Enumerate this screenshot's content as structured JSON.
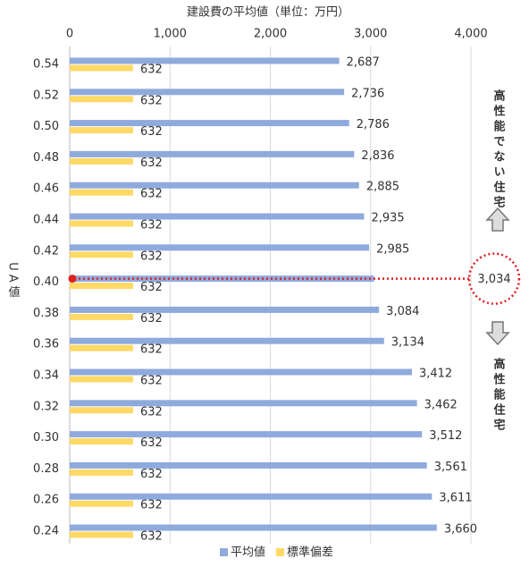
{
  "chart_data": {
    "type": "bar",
    "orientation": "horizontal",
    "title": "建設費の平均値（単位：万円）",
    "y_label": "UA値",
    "categories": [
      "0.54",
      "0.52",
      "0.50",
      "0.48",
      "0.46",
      "0.44",
      "0.42",
      "0.40",
      "0.38",
      "0.36",
      "0.34",
      "0.32",
      "0.30",
      "0.28",
      "0.26",
      "0.24"
    ],
    "series": [
      {
        "name": "平均値",
        "color": "#8faadc",
        "values": [
          2687,
          2736,
          2786,
          2836,
          2885,
          2935,
          2985,
          3034,
          3084,
          3134,
          3412,
          3462,
          3512,
          3561,
          3611,
          3660
        ],
        "value_labels": [
          "2,687",
          "2,736",
          "2,786",
          "2,836",
          "2,885",
          "2,935",
          "2,985",
          "3,034",
          "3,084",
          "3,134",
          "3,412",
          "3,462",
          "3,512",
          "3,561",
          "3,611",
          "3,660"
        ]
      },
      {
        "name": "標準偏差",
        "color": "#ffd966",
        "values": [
          632,
          632,
          632,
          632,
          632,
          632,
          632,
          632,
          632,
          632,
          632,
          632,
          632,
          632,
          632,
          632
        ]
      }
    ],
    "highlight": "0.40",
    "highlight_color": "#e02020",
    "annotations": [
      "高性能でない住宅",
      "高性能住宅"
    ],
    "xlim": [
      0,
      4000
    ],
    "xticks": [
      0,
      {
        "value": 1000,
        "label": "1,000"
      },
      {
        "value": 2000,
        "label": "2,000"
      },
      {
        "value": 3000,
        "label": "3,000"
      },
      {
        "value": 4000,
        "label": "4,000"
      }
    ],
    "grid": true,
    "legend": "bottom"
  }
}
